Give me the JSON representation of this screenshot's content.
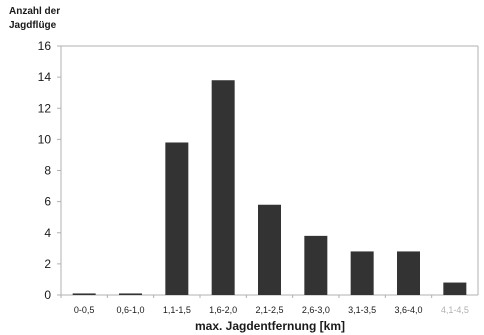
{
  "chart_data": {
    "type": "bar",
    "categories": [
      "0-0,5",
      "0,6-1,0",
      "1,1-1,5",
      "1,6-2,0",
      "2,1-2,5",
      "2,6-3,0",
      "3,1-3,5",
      "3,6-4,0",
      "4,1-4,5"
    ],
    "values": [
      0.1,
      0.1,
      9.8,
      13.8,
      5.8,
      3.8,
      2.8,
      2.8,
      0.8
    ],
    "xlabel": "max. Jagdentfernung [km]",
    "ylabel": "Anzahl der\nJagdflüge",
    "ylim": [
      0,
      16
    ],
    "yticks": [
      0,
      2,
      4,
      6,
      8,
      10,
      12,
      14,
      16
    ],
    "grid": false,
    "legend": "none",
    "colors": {
      "bar": "#333333",
      "axis": "#b0b0b0",
      "text": "#1a1a1a",
      "faded_label": "#b0b0b0"
    },
    "faded_categories": [
      "4,1-4,5"
    ]
  }
}
